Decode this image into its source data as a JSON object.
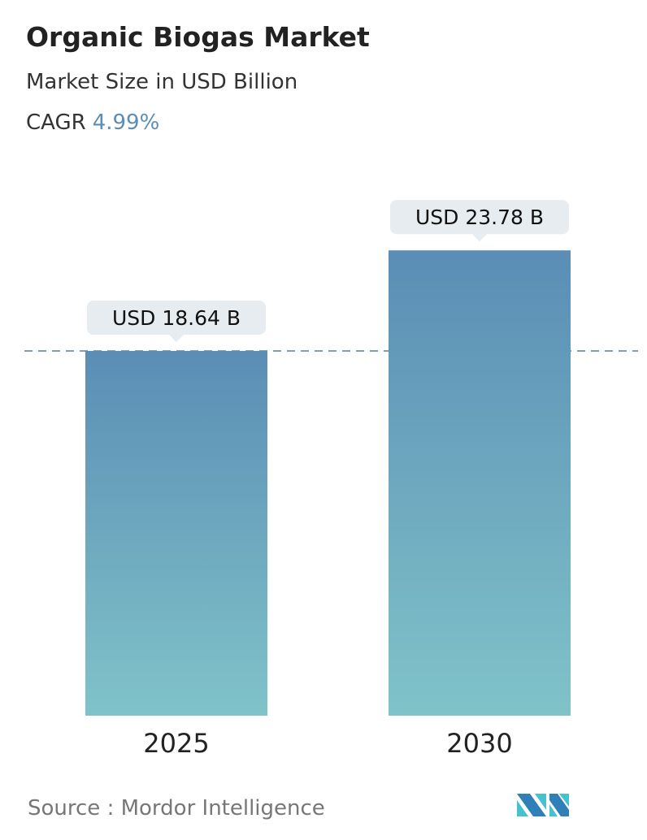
{
  "header": {
    "title": "Organic Biogas Market",
    "subtitle": "Market Size in USD Billion",
    "cagr_label": "CAGR",
    "cagr_value": "4.99%"
  },
  "footer": {
    "source": "Source :  Mordor Intelligence",
    "logo_text": "MN"
  },
  "colors": {
    "bar_top": "#5b8db5",
    "bar_bottom": "#80c3c9",
    "cagr": "#5b8db5",
    "callout": "#e6ecef"
  },
  "chart_data": {
    "type": "bar",
    "categories": [
      "2025",
      "2030"
    ],
    "values": [
      18.64,
      23.78
    ],
    "data_labels": [
      "USD 18.64 B",
      "USD 23.78 B"
    ],
    "ylim": [
      0,
      23.78
    ],
    "reference_line": {
      "value": 18.64,
      "style": "dashed"
    },
    "grid": false
  }
}
